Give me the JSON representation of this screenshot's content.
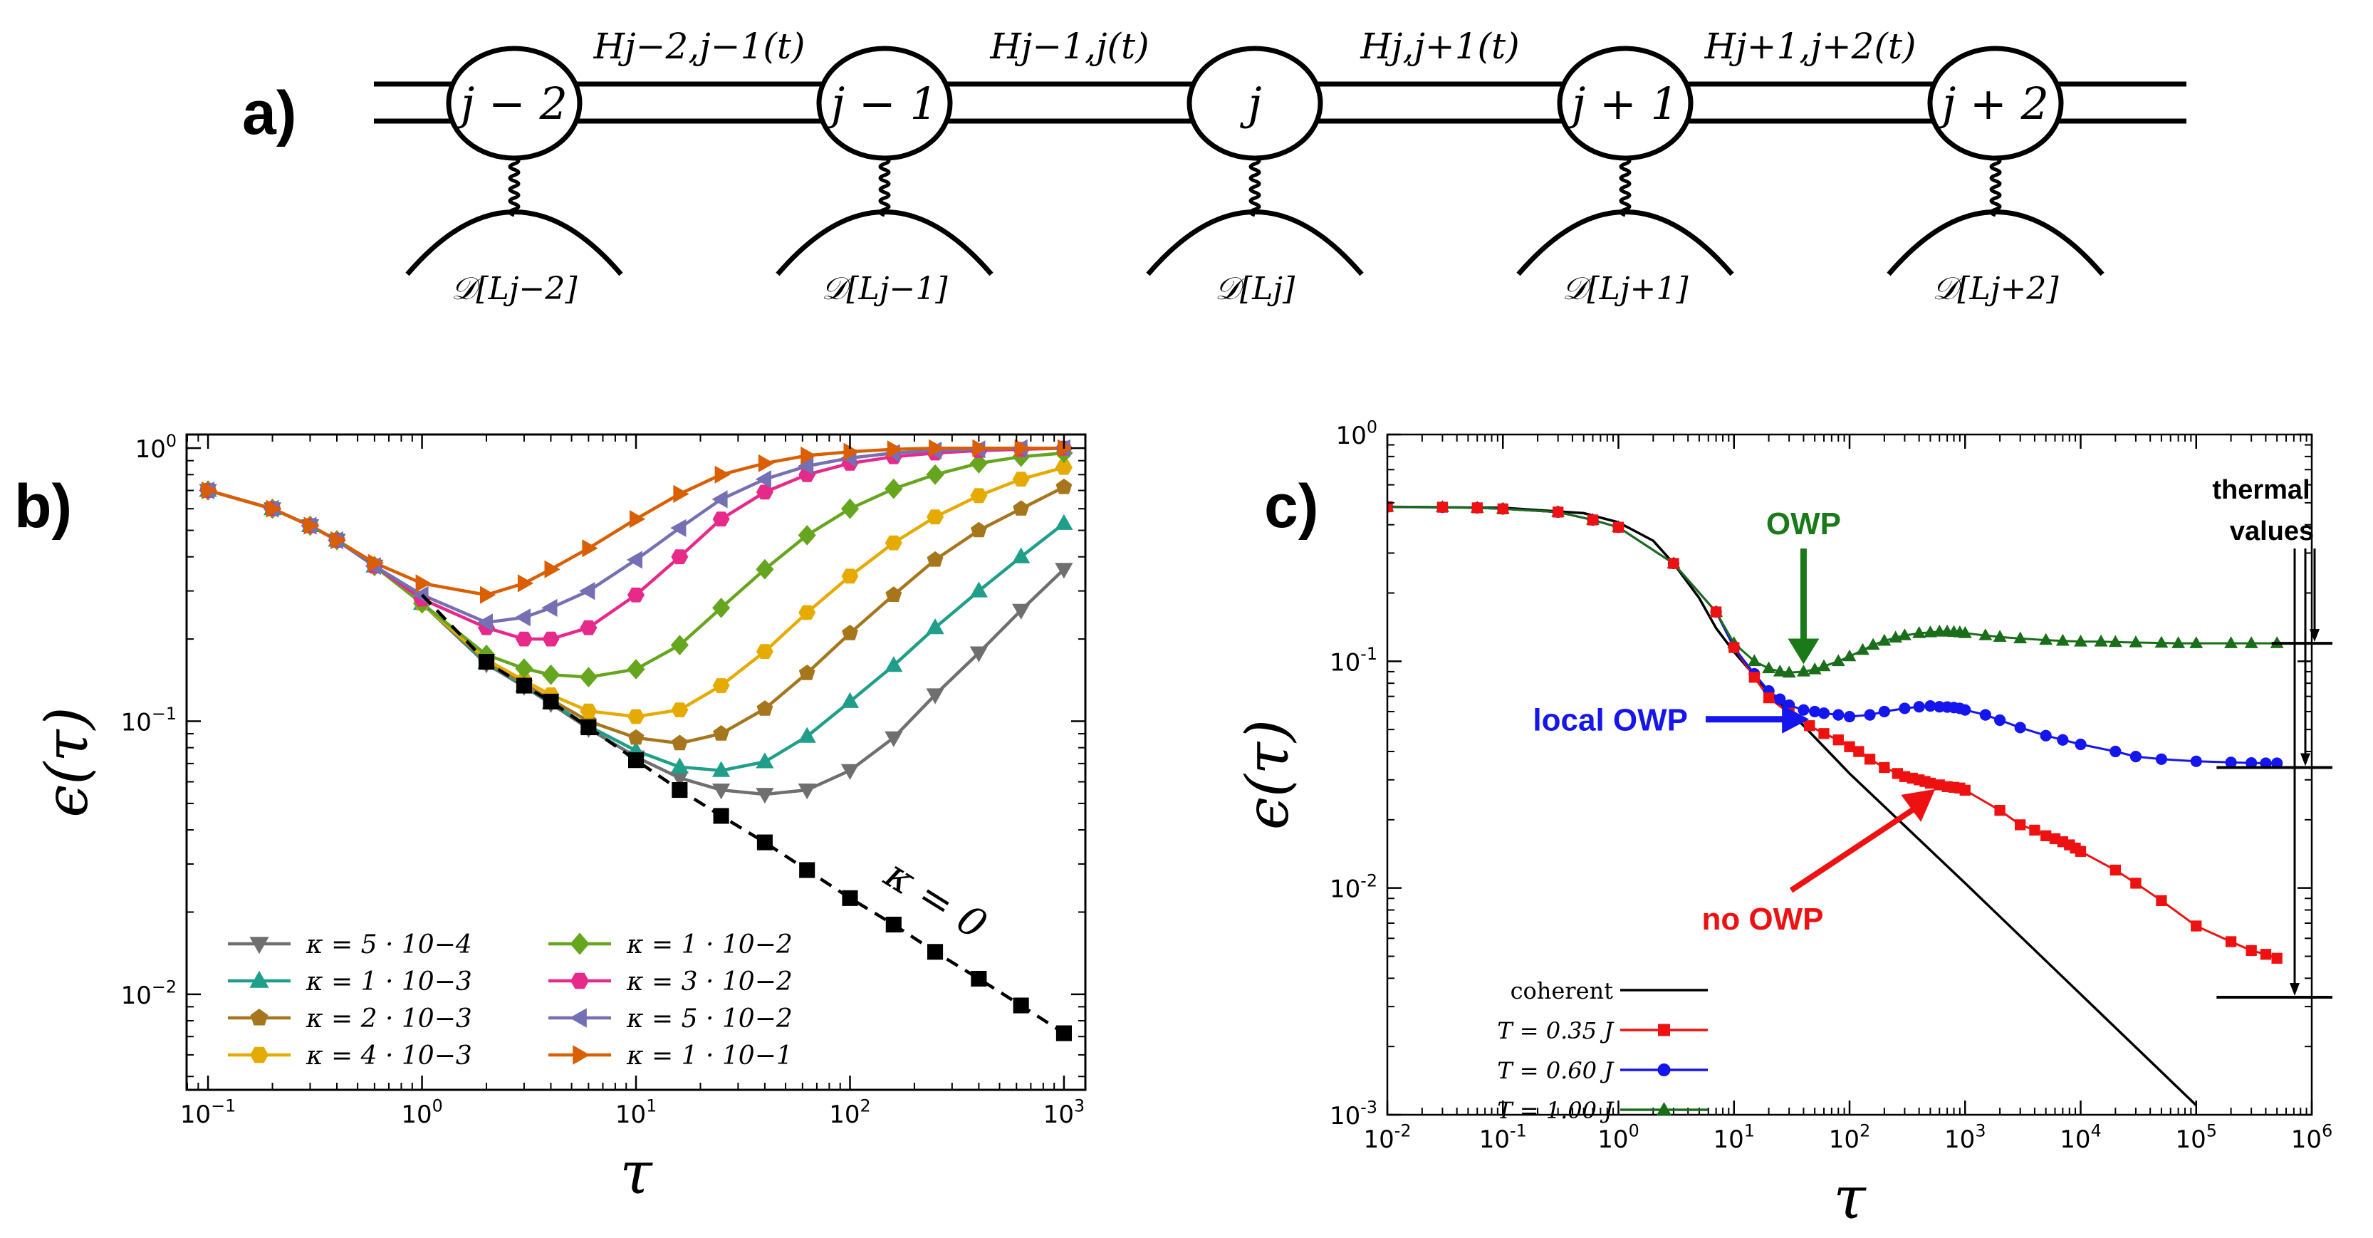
{
  "panel_labels": {
    "a": "a)",
    "b": "b)",
    "c": "c)"
  },
  "diagram": {
    "sites": [
      "j − 2",
      "j − 1",
      "j",
      "j + 1",
      "j + 2"
    ],
    "couplings": [
      "Hj−2,j−1(t)",
      "Hj−1,j(t)",
      "Hj,j+1(t)",
      "Hj+1,j+2(t)"
    ],
    "dissipators": [
      "𝒟[Lj−2]",
      "𝒟[Lj−1]",
      "𝒟[Lj]",
      "𝒟[Lj+1]",
      "𝒟[Lj+2]"
    ]
  },
  "chart_data": [
    {
      "id": "b",
      "type": "line",
      "xscale": "log",
      "yscale": "log",
      "xlim": [
        0.0794,
        1259
      ],
      "ylim": [
        0.004467,
        1.122
      ],
      "xlabel": "τ",
      "ylabel": "ϵ(τ)",
      "xticks": [
        {
          "v": 0.1,
          "b": "10",
          "e": "−1"
        },
        {
          "v": 1,
          "b": "10",
          "e": "0"
        },
        {
          "v": 10,
          "b": "10",
          "e": "1"
        },
        {
          "v": 100,
          "b": "10",
          "e": "2"
        },
        {
          "v": 1000,
          "b": "10",
          "e": "3"
        }
      ],
      "yticks": [
        {
          "v": 0.01,
          "b": "10",
          "e": "−2"
        },
        {
          "v": 0.1,
          "b": "10",
          "e": "−1"
        },
        {
          "v": 1,
          "b": "10",
          "e": "0"
        }
      ],
      "x": [
        0.1,
        0.2,
        0.3,
        0.4,
        0.6,
        1,
        2,
        3,
        4,
        6,
        10,
        16,
        25,
        40,
        63,
        100,
        160,
        250,
        400,
        630,
        1000
      ],
      "reference": {
        "name": "κ = 0",
        "x": [
          1,
          2,
          3,
          4,
          6,
          10,
          16,
          25,
          40,
          63,
          100,
          160,
          250,
          400,
          630,
          1000
        ],
        "values": [
          0.29,
          0.165,
          0.135,
          0.118,
          0.095,
          0.072,
          0.056,
          0.045,
          0.036,
          0.0285,
          0.0225,
          0.018,
          0.0143,
          0.0114,
          0.0091,
          0.0072
        ]
      },
      "reference_label": "κ = 0",
      "legend_position": "bottom-left",
      "series": [
        {
          "name": "κ = 5 · 10−4",
          "color": "#6f6f6f",
          "marker": "tri-down",
          "values": [
            0.7,
            0.6,
            0.52,
            0.46,
            0.37,
            0.27,
            0.162,
            0.134,
            0.116,
            0.094,
            0.074,
            0.062,
            0.056,
            0.054,
            0.056,
            0.066,
            0.087,
            0.125,
            0.178,
            0.255,
            0.36
          ]
        },
        {
          "name": "κ = 1 · 10−3",
          "color": "#1f9e89",
          "marker": "tri-up",
          "values": [
            0.7,
            0.6,
            0.52,
            0.46,
            0.37,
            0.27,
            0.164,
            0.135,
            0.117,
            0.096,
            0.078,
            0.068,
            0.066,
            0.071,
            0.088,
            0.118,
            0.16,
            0.22,
            0.3,
            0.4,
            0.53
          ]
        },
        {
          "name": "κ = 2 · 10−3",
          "color": "#a6761d",
          "marker": "pentagon",
          "values": [
            0.7,
            0.6,
            0.52,
            0.46,
            0.37,
            0.27,
            0.166,
            0.137,
            0.12,
            0.1,
            0.087,
            0.083,
            0.09,
            0.111,
            0.15,
            0.21,
            0.29,
            0.39,
            0.5,
            0.6,
            0.72
          ]
        },
        {
          "name": "κ = 4 · 10−3",
          "color": "#e6ab02",
          "marker": "hexagon",
          "values": [
            0.7,
            0.6,
            0.52,
            0.46,
            0.37,
            0.27,
            0.168,
            0.141,
            0.125,
            0.109,
            0.104,
            0.11,
            0.135,
            0.18,
            0.25,
            0.34,
            0.45,
            0.56,
            0.67,
            0.77,
            0.85
          ]
        },
        {
          "name": "κ = 1 · 10−2",
          "color": "#66a61e",
          "marker": "diamond",
          "values": [
            0.7,
            0.6,
            0.52,
            0.46,
            0.37,
            0.27,
            0.175,
            0.156,
            0.148,
            0.145,
            0.155,
            0.19,
            0.26,
            0.36,
            0.48,
            0.6,
            0.71,
            0.8,
            0.88,
            0.93,
            0.96
          ]
        },
        {
          "name": "κ = 3 · 10−2",
          "color": "#e7298a",
          "marker": "hexagon",
          "values": [
            0.7,
            0.6,
            0.52,
            0.46,
            0.37,
            0.28,
            0.22,
            0.2,
            0.2,
            0.22,
            0.29,
            0.4,
            0.55,
            0.69,
            0.8,
            0.88,
            0.93,
            0.96,
            0.98,
            0.99,
            1.0
          ]
        },
        {
          "name": "κ = 5 · 10−2",
          "color": "#7570b3",
          "marker": "tri-left",
          "values": [
            0.7,
            0.6,
            0.52,
            0.46,
            0.37,
            0.29,
            0.23,
            0.24,
            0.26,
            0.3,
            0.39,
            0.51,
            0.65,
            0.77,
            0.86,
            0.92,
            0.96,
            0.98,
            0.99,
            1.0,
            1.0
          ]
        },
        {
          "name": "κ = 1 · 10−1",
          "color": "#d95f02",
          "marker": "tri-right",
          "values": [
            0.7,
            0.6,
            0.52,
            0.46,
            0.38,
            0.32,
            0.29,
            0.32,
            0.36,
            0.43,
            0.55,
            0.68,
            0.8,
            0.88,
            0.94,
            0.97,
            0.99,
            1.0,
            1.0,
            1.0,
            1.0
          ]
        }
      ]
    },
    {
      "id": "c",
      "type": "line",
      "xscale": "log",
      "yscale": "log",
      "xlim": [
        0.01,
        1000000
      ],
      "ylim": [
        0.001,
        1
      ],
      "xlabel": "τ",
      "ylabel": "ϵ(τ)",
      "xticks": [
        {
          "v": 0.01,
          "b": "10",
          "e": "-2"
        },
        {
          "v": 0.1,
          "b": "10",
          "e": "-1"
        },
        {
          "v": 1,
          "b": "10",
          "e": "0"
        },
        {
          "v": 10,
          "b": "10",
          "e": "1"
        },
        {
          "v": 100,
          "b": "10",
          "e": "2"
        },
        {
          "v": 1000,
          "b": "10",
          "e": "3"
        },
        {
          "v": 10000,
          "b": "10",
          "e": "4"
        },
        {
          "v": 100000,
          "b": "10",
          "e": "5"
        },
        {
          "v": 1000000,
          "b": "10",
          "e": "6"
        }
      ],
      "yticks": [
        {
          "v": 0.001,
          "b": "10",
          "e": "-3"
        },
        {
          "v": 0.01,
          "b": "10",
          "e": "-2"
        },
        {
          "v": 0.1,
          "b": "10",
          "e": "-1"
        },
        {
          "v": 1,
          "b": "10",
          "e": "0"
        }
      ],
      "legend_position": "bottom-left",
      "coherent": {
        "name": "coherent",
        "color": "#000000",
        "x": [
          0.01,
          0.1,
          0.5,
          1,
          2,
          3,
          5,
          7,
          10,
          20,
          40,
          100,
          1000,
          10000,
          100000
        ],
        "values": [
          0.48,
          0.475,
          0.45,
          0.41,
          0.34,
          0.27,
          0.19,
          0.14,
          0.11,
          0.073,
          0.052,
          0.032,
          0.0105,
          0.0034,
          0.0011
        ]
      },
      "series": [
        {
          "name": "T = 0.35 J",
          "color": "#ee1111",
          "marker": "square",
          "x": [
            0.01,
            0.03,
            0.06,
            0.1,
            0.3,
            0.6,
            1,
            3,
            7,
            10,
            15,
            20,
            30,
            45,
            60,
            80,
            100,
            120,
            150,
            200,
            260,
            300,
            350,
            400,
            450,
            500,
            600,
            700,
            800,
            900,
            1000,
            2000,
            3000,
            4000,
            5000,
            6000,
            7000,
            8000,
            9000,
            10000,
            20000,
            30000,
            50000,
            100000,
            200000,
            300000,
            400000,
            500000
          ],
          "values": [
            0.48,
            0.478,
            0.475,
            0.47,
            0.455,
            0.42,
            0.39,
            0.27,
            0.165,
            0.115,
            0.085,
            0.069,
            0.059,
            0.052,
            0.048,
            0.045,
            0.042,
            0.04,
            0.037,
            0.034,
            0.032,
            0.031,
            0.0305,
            0.03,
            0.0295,
            0.029,
            0.0285,
            0.028,
            0.0278,
            0.0276,
            0.027,
            0.022,
            0.019,
            0.018,
            0.017,
            0.0165,
            0.016,
            0.0155,
            0.015,
            0.0145,
            0.012,
            0.0105,
            0.0088,
            0.0068,
            0.0058,
            0.0053,
            0.0051,
            0.0049
          ]
        },
        {
          "name": "T = 0.60 J",
          "color": "#1515ee",
          "marker": "circle",
          "x": [
            0.01,
            0.03,
            0.06,
            0.1,
            0.3,
            0.6,
            1,
            3,
            7,
            10,
            15,
            20,
            25,
            30,
            40,
            50,
            60,
            80,
            100,
            150,
            200,
            300,
            400,
            500,
            600,
            700,
            800,
            900,
            1000,
            1500,
            2000,
            3000,
            5000,
            7000,
            10000,
            20000,
            30000,
            50000,
            100000,
            200000,
            300000,
            400000,
            500000
          ],
          "values": [
            0.48,
            0.478,
            0.475,
            0.47,
            0.455,
            0.42,
            0.39,
            0.27,
            0.165,
            0.115,
            0.088,
            0.074,
            0.068,
            0.064,
            0.061,
            0.06,
            0.059,
            0.058,
            0.057,
            0.058,
            0.06,
            0.062,
            0.063,
            0.0635,
            0.063,
            0.0628,
            0.0625,
            0.062,
            0.061,
            0.058,
            0.055,
            0.051,
            0.047,
            0.045,
            0.043,
            0.04,
            0.038,
            0.037,
            0.0362,
            0.0358,
            0.0356,
            0.0355,
            0.0355
          ]
        },
        {
          "name": "T = 1.00 J",
          "color": "#1a6e1a",
          "marker": "tri-up",
          "x": [
            0.01,
            0.03,
            0.06,
            0.1,
            0.3,
            0.6,
            1,
            3,
            7,
            10,
            15,
            20,
            25,
            30,
            40,
            50,
            60,
            80,
            100,
            130,
            160,
            200,
            250,
            300,
            400,
            500,
            600,
            700,
            800,
            900,
            1000,
            1500,
            2000,
            3000,
            5000,
            7000,
            10000,
            15000,
            20000,
            30000,
            50000,
            70000,
            100000,
            200000,
            300000,
            500000
          ],
          "values": [
            0.48,
            0.478,
            0.475,
            0.47,
            0.455,
            0.42,
            0.39,
            0.27,
            0.165,
            0.12,
            0.1,
            0.093,
            0.09,
            0.089,
            0.09,
            0.092,
            0.095,
            0.1,
            0.105,
            0.112,
            0.118,
            0.123,
            0.127,
            0.13,
            0.133,
            0.134,
            0.135,
            0.135,
            0.1345,
            0.134,
            0.133,
            0.13,
            0.128,
            0.126,
            0.124,
            0.123,
            0.122,
            0.122,
            0.1215,
            0.121,
            0.1205,
            0.12,
            0.12,
            0.12,
            0.12,
            0.12
          ]
        }
      ],
      "thermal_lines": [
        0.12,
        0.034,
        0.0033
      ],
      "annotations": {
        "owp": "OWP",
        "local_owp": "local OWP",
        "no_owp": "no OWP",
        "thermal": [
          "thermal",
          "values"
        ]
      }
    }
  ]
}
